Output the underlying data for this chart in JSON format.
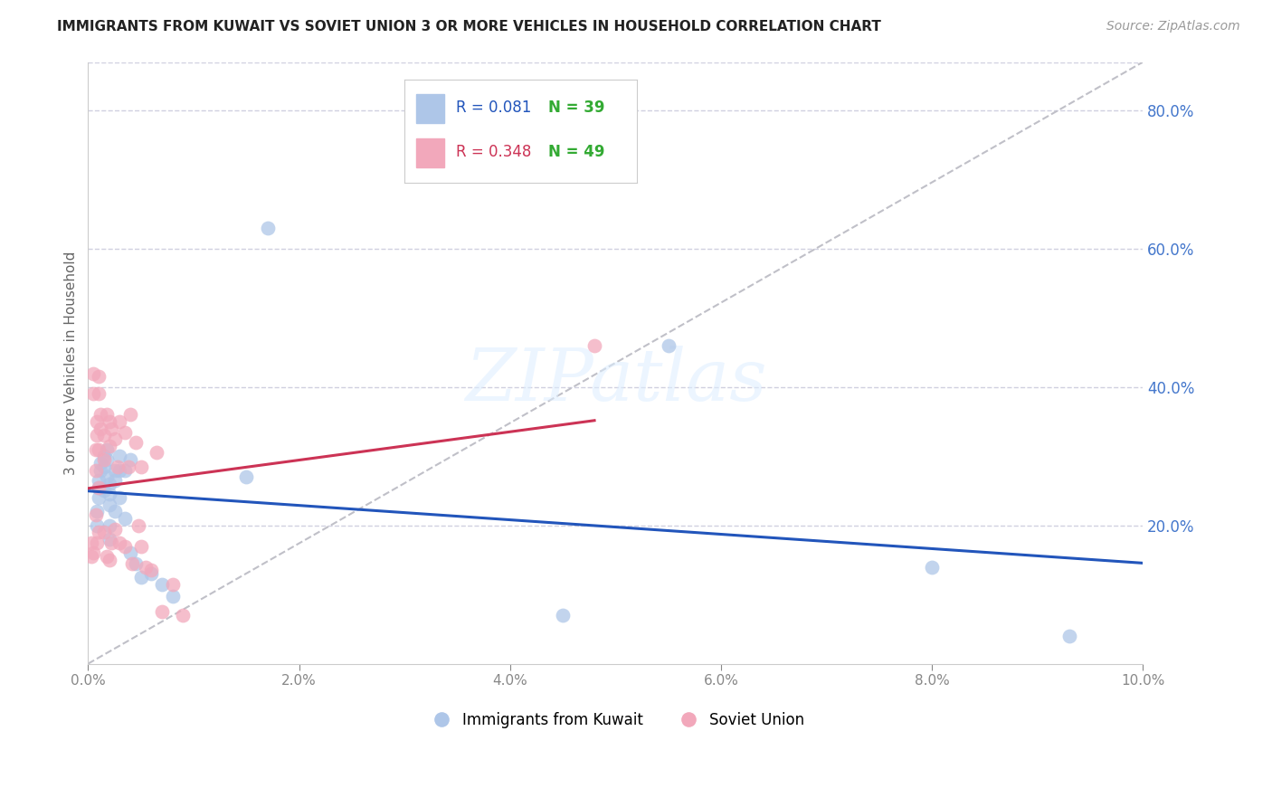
{
  "title": "IMMIGRANTS FROM KUWAIT VS SOVIET UNION 3 OR MORE VEHICLES IN HOUSEHOLD CORRELATION CHART",
  "source": "Source: ZipAtlas.com",
  "ylabel": "3 or more Vehicles in Household",
  "xlim": [
    0.0,
    0.1
  ],
  "ylim": [
    0.0,
    0.87
  ],
  "xticks": [
    0.0,
    0.02,
    0.04,
    0.06,
    0.08,
    0.1
  ],
  "xtick_labels": [
    "0.0%",
    "2.0%",
    "4.0%",
    "6.0%",
    "8.0%",
    "10.0%"
  ],
  "yticks_right": [
    0.2,
    0.4,
    0.6,
    0.8
  ],
  "ytick_right_labels": [
    "20.0%",
    "40.0%",
    "60.0%",
    "80.0%"
  ],
  "legend_entries": [
    "Immigrants from Kuwait",
    "Soviet Union"
  ],
  "kuwait_R": 0.081,
  "kuwait_N": 39,
  "soviet_R": 0.348,
  "soviet_N": 49,
  "kuwait_color": "#aec6e8",
  "soviet_color": "#f2a8bb",
  "kuwait_line_color": "#2255bb",
  "soviet_line_color": "#cc3355",
  "diagonal_color": "#c0c0c8",
  "background_color": "#ffffff",
  "grid_color": "#d0d0e0",
  "right_axis_color": "#4477cc",
  "kuwait_scatter_x": [
    0.0008,
    0.0008,
    0.001,
    0.001,
    0.001,
    0.0012,
    0.0012,
    0.0015,
    0.0015,
    0.0015,
    0.0018,
    0.0018,
    0.0018,
    0.002,
    0.002,
    0.002,
    0.002,
    0.002,
    0.0025,
    0.0025,
    0.0025,
    0.003,
    0.003,
    0.003,
    0.0035,
    0.0035,
    0.004,
    0.004,
    0.0045,
    0.005,
    0.006,
    0.007,
    0.008,
    0.015,
    0.017,
    0.045,
    0.055,
    0.08,
    0.093
  ],
  "kuwait_scatter_y": [
    0.22,
    0.2,
    0.265,
    0.255,
    0.24,
    0.29,
    0.28,
    0.3,
    0.285,
    0.25,
    0.31,
    0.295,
    0.27,
    0.26,
    0.245,
    0.23,
    0.2,
    0.18,
    0.28,
    0.265,
    0.22,
    0.3,
    0.28,
    0.24,
    0.28,
    0.21,
    0.295,
    0.16,
    0.145,
    0.125,
    0.13,
    0.115,
    0.098,
    0.27,
    0.63,
    0.07,
    0.46,
    0.14,
    0.04
  ],
  "soviet_scatter_x": [
    0.0003,
    0.0003,
    0.0005,
    0.0005,
    0.0005,
    0.0007,
    0.0007,
    0.0007,
    0.0008,
    0.0008,
    0.0008,
    0.001,
    0.001,
    0.001,
    0.001,
    0.001,
    0.0012,
    0.0012,
    0.0015,
    0.0015,
    0.0015,
    0.0018,
    0.0018,
    0.002,
    0.002,
    0.002,
    0.0022,
    0.0022,
    0.0025,
    0.0025,
    0.0028,
    0.003,
    0.003,
    0.0035,
    0.0035,
    0.0038,
    0.004,
    0.0042,
    0.0045,
    0.0048,
    0.005,
    0.005,
    0.0055,
    0.006,
    0.0065,
    0.007,
    0.008,
    0.009,
    0.048
  ],
  "soviet_scatter_y": [
    0.175,
    0.155,
    0.42,
    0.39,
    0.16,
    0.31,
    0.28,
    0.215,
    0.35,
    0.33,
    0.175,
    0.415,
    0.39,
    0.31,
    0.255,
    0.19,
    0.36,
    0.34,
    0.33,
    0.295,
    0.19,
    0.36,
    0.155,
    0.35,
    0.315,
    0.15,
    0.34,
    0.175,
    0.325,
    0.195,
    0.285,
    0.35,
    0.175,
    0.335,
    0.17,
    0.285,
    0.36,
    0.145,
    0.32,
    0.2,
    0.285,
    0.17,
    0.14,
    0.135,
    0.305,
    0.075,
    0.115,
    0.07,
    0.46
  ],
  "title_fontsize": 11,
  "source_fontsize": 10,
  "axis_label_fontsize": 11,
  "tick_fontsize": 11,
  "legend_fontsize": 12,
  "annotation_fontsize": 13,
  "watermark_text": "ZIPatlas"
}
